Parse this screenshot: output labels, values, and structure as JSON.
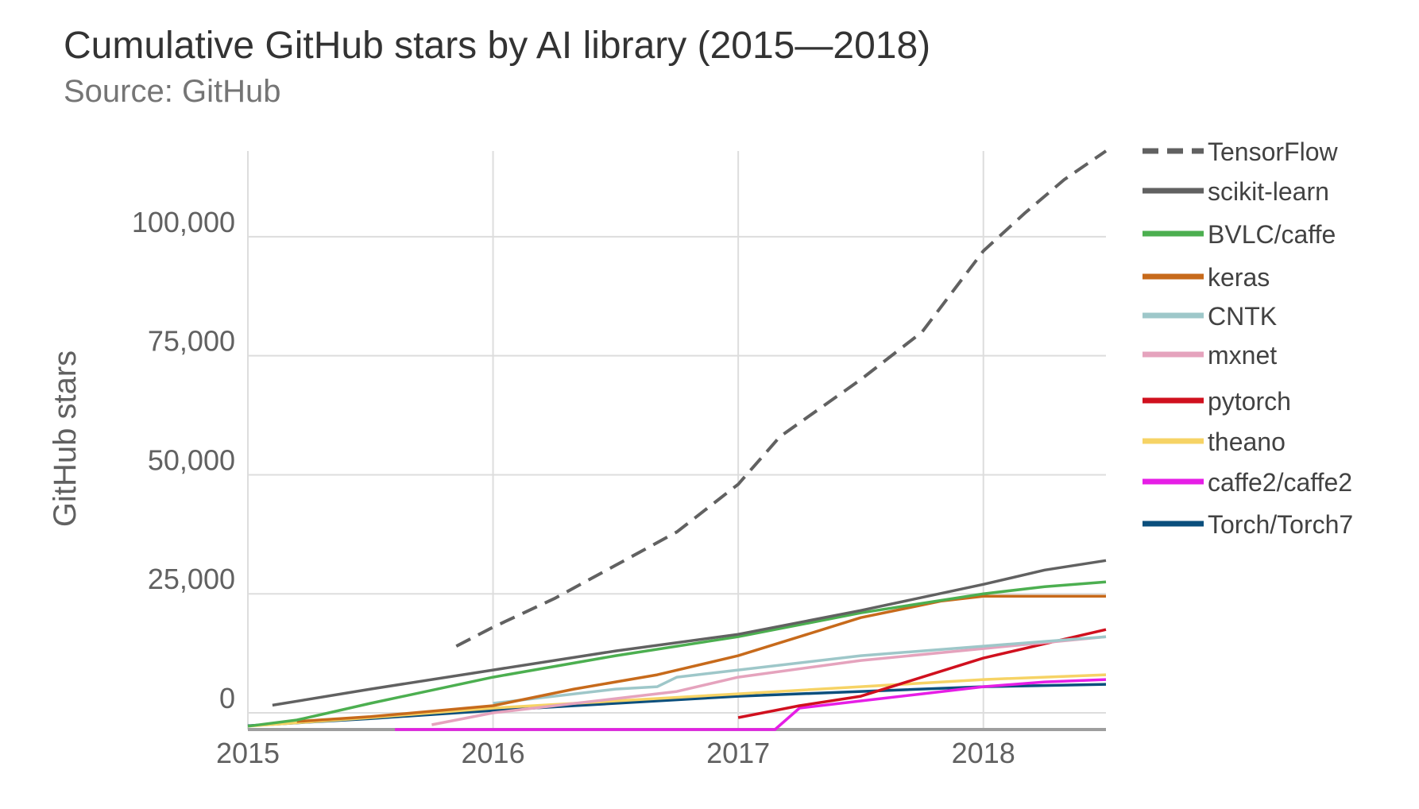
{
  "chart_data": {
    "type": "line",
    "title": "Cumulative GitHub stars by AI library (2015—2018)",
    "subtitle": "Source: GitHub",
    "xlabel": "",
    "ylabel": "GitHub stars",
    "xlim": [
      2015.0,
      2018.5
    ],
    "ylim": [
      -3500,
      118000
    ],
    "x_ticks": [
      2015,
      2016,
      2017,
      2018
    ],
    "x_tick_labels": [
      "2015",
      "2016",
      "2017",
      "2018"
    ],
    "y_ticks": [
      0,
      25000,
      50000,
      75000,
      100000
    ],
    "y_tick_labels": [
      "0",
      "25,000",
      "50,000",
      "75,000",
      "100,000"
    ],
    "grid": true,
    "legend_position": "right",
    "series": [
      {
        "name": "TensorFlow",
        "color": "#616161",
        "dashed": true,
        "points": [
          [
            2015.85,
            14000
          ],
          [
            2016.0,
            18000
          ],
          [
            2016.25,
            24000
          ],
          [
            2016.5,
            31000
          ],
          [
            2016.75,
            38000
          ],
          [
            2017.0,
            48000
          ],
          [
            2017.17,
            58000
          ],
          [
            2017.5,
            70000
          ],
          [
            2017.75,
            80000
          ],
          [
            2018.0,
            97000
          ],
          [
            2018.17,
            105000
          ],
          [
            2018.33,
            112000
          ],
          [
            2018.5,
            118000
          ]
        ]
      },
      {
        "name": "scikit-learn",
        "color": "#616161",
        "dashed": false,
        "points": [
          [
            2015.1,
            1600
          ],
          [
            2015.5,
            5000
          ],
          [
            2016.0,
            9000
          ],
          [
            2016.5,
            13000
          ],
          [
            2017.0,
            16500
          ],
          [
            2017.5,
            21500
          ],
          [
            2018.0,
            27000
          ],
          [
            2018.25,
            30000
          ],
          [
            2018.5,
            32000
          ]
        ]
      },
      {
        "name": "BVLC/caffe",
        "color": "#4caf50",
        "dashed": false,
        "points": [
          [
            2015.0,
            -2800
          ],
          [
            2015.2,
            -1500
          ],
          [
            2015.33,
            0
          ],
          [
            2015.5,
            2000
          ],
          [
            2016.0,
            7500
          ],
          [
            2016.5,
            12000
          ],
          [
            2017.0,
            16000
          ],
          [
            2017.5,
            21000
          ],
          [
            2018.0,
            25000
          ],
          [
            2018.25,
            26500
          ],
          [
            2018.5,
            27500
          ]
        ]
      },
      {
        "name": "keras",
        "color": "#c76a1b",
        "dashed": false,
        "points": [
          [
            2015.2,
            -1800
          ],
          [
            2015.5,
            -800
          ],
          [
            2016.0,
            1500
          ],
          [
            2016.33,
            5000
          ],
          [
            2016.67,
            8000
          ],
          [
            2017.0,
            12000
          ],
          [
            2017.25,
            16000
          ],
          [
            2017.5,
            20000
          ],
          [
            2017.83,
            23500
          ],
          [
            2018.0,
            24500
          ],
          [
            2018.5,
            24500
          ]
        ]
      },
      {
        "name": "CNTK",
        "color": "#9ec7c9",
        "dashed": false,
        "points": [
          [
            2016.0,
            2000
          ],
          [
            2016.5,
            5000
          ],
          [
            2016.67,
            5500
          ],
          [
            2016.75,
            7500
          ],
          [
            2017.0,
            9000
          ],
          [
            2017.5,
            12000
          ],
          [
            2018.0,
            14000
          ],
          [
            2018.5,
            16000
          ]
        ]
      },
      {
        "name": "mxnet",
        "color": "#e5a3bd",
        "dashed": false,
        "points": [
          [
            2015.75,
            -2500
          ],
          [
            2016.0,
            0
          ],
          [
            2016.5,
            3000
          ],
          [
            2016.75,
            4500
          ],
          [
            2017.0,
            7500
          ],
          [
            2017.5,
            11000
          ],
          [
            2018.0,
            13500
          ],
          [
            2018.5,
            16000
          ]
        ]
      },
      {
        "name": "pytorch",
        "color": "#d0101e",
        "dashed": false,
        "points": [
          [
            2017.0,
            -1000
          ],
          [
            2017.25,
            1500
          ],
          [
            2017.5,
            3500
          ],
          [
            2017.75,
            7500
          ],
          [
            2018.0,
            11500
          ],
          [
            2018.25,
            14500
          ],
          [
            2018.5,
            17500
          ]
        ]
      },
      {
        "name": "theano",
        "color": "#f6d365",
        "dashed": false,
        "points": [
          [
            2015.0,
            -2800
          ],
          [
            2015.5,
            -1000
          ],
          [
            2016.0,
            1000
          ],
          [
            2016.5,
            2500
          ],
          [
            2017.0,
            4000
          ],
          [
            2017.5,
            5500
          ],
          [
            2018.0,
            7000
          ],
          [
            2018.5,
            8000
          ]
        ]
      },
      {
        "name": "caffe2/caffe2",
        "color": "#e61ee6",
        "dashed": false,
        "points": [
          [
            2015.6,
            -3500
          ],
          [
            2017.15,
            -3500
          ],
          [
            2017.25,
            1000
          ],
          [
            2017.5,
            2500
          ],
          [
            2017.75,
            4000
          ],
          [
            2018.0,
            5500
          ],
          [
            2018.25,
            6500
          ],
          [
            2018.5,
            7000
          ]
        ]
      },
      {
        "name": "Torch/Torch7",
        "color": "#0b4f7d",
        "dashed": false,
        "points": [
          [
            2015.0,
            -2700
          ],
          [
            2015.5,
            -1200
          ],
          [
            2016.0,
            500
          ],
          [
            2016.5,
            2000
          ],
          [
            2017.0,
            3500
          ],
          [
            2017.5,
            4500
          ],
          [
            2018.0,
            5500
          ],
          [
            2018.5,
            6000
          ]
        ]
      }
    ]
  }
}
